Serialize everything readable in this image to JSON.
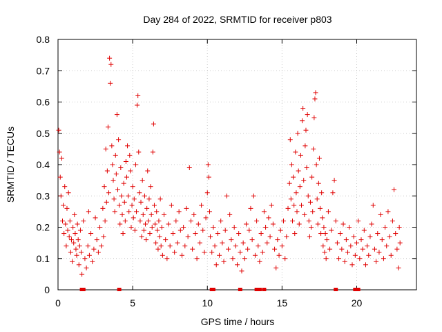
{
  "chart_data": {
    "type": "scatter",
    "title": "Day 284 of 2022, SRMTID for receiver p803",
    "xlabel": "GPS time / hours",
    "ylabel": "SRMTID / TECUs",
    "xlim": [
      0,
      24
    ],
    "ylim": [
      0,
      0.8
    ],
    "xticks": [
      0,
      5,
      10,
      15,
      20
    ],
    "yticks": [
      0,
      0.1,
      0.2,
      0.3,
      0.4,
      0.5,
      0.6,
      0.7,
      0.8
    ],
    "xtick_labels": [
      "0",
      "5",
      "10",
      "15",
      "20"
    ],
    "ytick_labels": [
      "0",
      "0.1",
      "0.2",
      "0.3",
      "0.4",
      "0.5",
      "0.6",
      "0.7",
      "0.8"
    ],
    "grid": true,
    "marker": "+",
    "color": "#e00000",
    "series": [
      {
        "name": "SRMTID",
        "points": [
          [
            0.05,
            0.51
          ],
          [
            0.1,
            0.44
          ],
          [
            0.15,
            0.36
          ],
          [
            0.2,
            0.3
          ],
          [
            0.25,
            0.42
          ],
          [
            0.3,
            0.22
          ],
          [
            0.35,
            0.27
          ],
          [
            0.4,
            0.18
          ],
          [
            0.45,
            0.33
          ],
          [
            0.5,
            0.21
          ],
          [
            0.55,
            0.14
          ],
          [
            0.6,
            0.26
          ],
          [
            0.65,
            0.19
          ],
          [
            0.7,
            0.31
          ],
          [
            0.75,
            0.17
          ],
          [
            0.8,
            0.22
          ],
          [
            0.85,
            0.12
          ],
          [
            0.9,
            0.16
          ],
          [
            0.95,
            0.09
          ],
          [
            1.0,
            0.2
          ],
          [
            1.05,
            0.15
          ],
          [
            1.1,
            0.24
          ],
          [
            1.15,
            0.18
          ],
          [
            1.2,
            0.13
          ],
          [
            1.25,
            0.11
          ],
          [
            1.3,
            0.21
          ],
          [
            1.35,
            0.16
          ],
          [
            1.4,
            0.08
          ],
          [
            1.45,
            0.14
          ],
          [
            1.5,
            0.19
          ],
          [
            1.55,
            0.12
          ],
          [
            1.6,
            0.05
          ],
          [
            1.7,
            0.22
          ],
          [
            1.8,
            0.1
          ],
          [
            1.9,
            0.07
          ],
          [
            2.0,
            0.14
          ],
          [
            2.05,
            0.25
          ],
          [
            2.1,
            0.11
          ],
          [
            2.2,
            0.18
          ],
          [
            2.3,
            0.09
          ],
          [
            2.4,
            0.13
          ],
          [
            2.5,
            0.23
          ],
          [
            2.6,
            0.16
          ],
          [
            2.7,
            0.12
          ],
          [
            2.8,
            0.2
          ],
          [
            2.9,
            0.14
          ],
          [
            3.0,
            0.26
          ],
          [
            3.05,
            0.17
          ],
          [
            3.1,
            0.33
          ],
          [
            3.15,
            0.22
          ],
          [
            3.2,
            0.45
          ],
          [
            3.25,
            0.28
          ],
          [
            3.3,
            0.38
          ],
          [
            3.35,
            0.52
          ],
          [
            3.4,
            0.31
          ],
          [
            3.45,
            0.74
          ],
          [
            3.5,
            0.66
          ],
          [
            3.55,
            0.72
          ],
          [
            3.6,
            0.46
          ],
          [
            3.65,
            0.4
          ],
          [
            3.7,
            0.35
          ],
          [
            3.75,
            0.29
          ],
          [
            3.8,
            0.25
          ],
          [
            3.85,
            0.43
          ],
          [
            3.9,
            0.37
          ],
          [
            3.95,
            0.56
          ],
          [
            4.0,
            0.32
          ],
          [
            4.05,
            0.48
          ],
          [
            4.1,
            0.27
          ],
          [
            4.15,
            0.21
          ],
          [
            4.2,
            0.39
          ],
          [
            4.25,
            0.3
          ],
          [
            4.3,
            0.24
          ],
          [
            4.35,
            0.18
          ],
          [
            4.4,
            0.34
          ],
          [
            4.45,
            0.28
          ],
          [
            4.5,
            0.22
          ],
          [
            4.55,
            0.41
          ],
          [
            4.6,
            0.36
          ],
          [
            4.65,
            0.46
          ],
          [
            4.7,
            0.3
          ],
          [
            4.75,
            0.25
          ],
          [
            4.8,
            0.43
          ],
          [
            4.85,
            0.38
          ],
          [
            4.9,
            0.2
          ],
          [
            4.95,
            0.27
          ],
          [
            5.0,
            0.33
          ],
          [
            5.05,
            0.23
          ],
          [
            5.1,
            0.29
          ],
          [
            5.15,
            0.19
          ],
          [
            5.2,
            0.4
          ],
          [
            5.25,
            0.25
          ],
          [
            5.3,
            0.59
          ],
          [
            5.35,
            0.62
          ],
          [
            5.4,
            0.44
          ],
          [
            5.45,
            0.31
          ],
          [
            5.5,
            0.22
          ],
          [
            5.55,
            0.28
          ],
          [
            5.6,
            0.17
          ],
          [
            5.65,
            0.35
          ],
          [
            5.7,
            0.24
          ],
          [
            5.75,
            0.19
          ],
          [
            5.8,
            0.3
          ],
          [
            5.85,
            0.21
          ],
          [
            5.9,
            0.16
          ],
          [
            5.95,
            0.26
          ],
          [
            6.0,
            0.38
          ],
          [
            6.05,
            0.22
          ],
          [
            6.1,
            0.29
          ],
          [
            6.15,
            0.18
          ],
          [
            6.2,
            0.33
          ],
          [
            6.25,
            0.24
          ],
          [
            6.3,
            0.2
          ],
          [
            6.35,
            0.44
          ],
          [
            6.4,
            0.53
          ],
          [
            6.45,
            0.27
          ],
          [
            6.5,
            0.21
          ],
          [
            6.55,
            0.15
          ],
          [
            6.6,
            0.25
          ],
          [
            6.65,
            0.19
          ],
          [
            6.7,
            0.13
          ],
          [
            6.75,
            0.22
          ],
          [
            6.8,
            0.17
          ],
          [
            6.85,
            0.29
          ],
          [
            6.9,
            0.14
          ],
          [
            6.95,
            0.2
          ],
          [
            7.0,
            0.11
          ],
          [
            7.1,
            0.24
          ],
          [
            7.2,
            0.16
          ],
          [
            7.3,
            0.1
          ],
          [
            7.4,
            0.21
          ],
          [
            7.5,
            0.14
          ],
          [
            7.6,
            0.27
          ],
          [
            7.7,
            0.18
          ],
          [
            7.8,
            0.12
          ],
          [
            7.9,
            0.22
          ],
          [
            8.0,
            0.15
          ],
          [
            8.1,
            0.25
          ],
          [
            8.2,
            0.19
          ],
          [
            8.3,
            0.11
          ],
          [
            8.4,
            0.2
          ],
          [
            8.5,
            0.14
          ],
          [
            8.6,
            0.26
          ],
          [
            8.7,
            0.17
          ],
          [
            8.8,
            0.39
          ],
          [
            8.9,
            0.22
          ],
          [
            9.0,
            0.13
          ],
          [
            9.1,
            0.24
          ],
          [
            9.2,
            0.18
          ],
          [
            9.3,
            0.1
          ],
          [
            9.4,
            0.21
          ],
          [
            9.5,
            0.15
          ],
          [
            9.6,
            0.27
          ],
          [
            9.7,
            0.19
          ],
          [
            9.8,
            0.12
          ],
          [
            9.9,
            0.23
          ],
          [
            10.0,
            0.31
          ],
          [
            10.05,
            0.4
          ],
          [
            10.1,
            0.36
          ],
          [
            10.15,
            0.25
          ],
          [
            10.2,
            0.17
          ],
          [
            10.3,
            0.12
          ],
          [
            10.4,
            0.2
          ],
          [
            10.5,
            0.14
          ],
          [
            10.6,
            0.08
          ],
          [
            10.7,
            0.18
          ],
          [
            10.8,
            0.11
          ],
          [
            10.9,
            0.22
          ],
          [
            11.0,
            0.15
          ],
          [
            11.1,
            0.09
          ],
          [
            11.2,
            0.19
          ],
          [
            11.3,
            0.3
          ],
          [
            11.4,
            0.13
          ],
          [
            11.5,
            0.24
          ],
          [
            11.6,
            0.16
          ],
          [
            11.7,
            0.1
          ],
          [
            11.8,
            0.2
          ],
          [
            11.9,
            0.14
          ],
          [
            12.0,
            0.08
          ],
          [
            12.1,
            0.18
          ],
          [
            12.2,
            0.12
          ],
          [
            12.3,
            0.06
          ],
          [
            12.4,
            0.15
          ],
          [
            12.5,
            0.1
          ],
          [
            12.6,
            0.21
          ],
          [
            12.7,
            0.13
          ],
          [
            12.8,
            0.19
          ],
          [
            12.9,
            0.26
          ],
          [
            13.0,
            0.16
          ],
          [
            13.1,
            0.3
          ],
          [
            13.2,
            0.11
          ],
          [
            13.3,
            0.22
          ],
          [
            13.4,
            0.14
          ],
          [
            13.5,
            0.09
          ],
          [
            13.6,
            0.18
          ],
          [
            13.7,
            0.12
          ],
          [
            13.8,
            0.25
          ],
          [
            13.9,
            0.2
          ],
          [
            14.0,
            0.15
          ],
          [
            14.1,
            0.23
          ],
          [
            14.2,
            0.17
          ],
          [
            14.3,
            0.27
          ],
          [
            14.4,
            0.21
          ],
          [
            14.5,
            0.13
          ],
          [
            14.6,
            0.07
          ],
          [
            14.7,
            0.16
          ],
          [
            14.8,
            0.11
          ],
          [
            14.9,
            0.19
          ],
          [
            15.0,
            0.14
          ],
          [
            15.1,
            0.22
          ],
          [
            15.2,
            0.1
          ],
          [
            15.3,
            0.17
          ],
          [
            15.4,
            0.26
          ],
          [
            15.5,
            0.34
          ],
          [
            15.55,
            0.48
          ],
          [
            15.6,
            0.29
          ],
          [
            15.65,
            0.4
          ],
          [
            15.7,
            0.22
          ],
          [
            15.75,
            0.36
          ],
          [
            15.8,
            0.27
          ],
          [
            15.85,
            0.18
          ],
          [
            15.9,
            0.44
          ],
          [
            15.95,
            0.31
          ],
          [
            16.0,
            0.25
          ],
          [
            16.05,
            0.5
          ],
          [
            16.1,
            0.38
          ],
          [
            16.15,
            0.21
          ],
          [
            16.2,
            0.33
          ],
          [
            16.25,
            0.43
          ],
          [
            16.3,
            0.27
          ],
          [
            16.35,
            0.54
          ],
          [
            16.4,
            0.58
          ],
          [
            16.45,
            0.35
          ],
          [
            16.5,
            0.24
          ],
          [
            16.55,
            0.46
          ],
          [
            16.6,
            0.51
          ],
          [
            16.65,
            0.39
          ],
          [
            16.7,
            0.56
          ],
          [
            16.75,
            0.3
          ],
          [
            16.8,
            0.22
          ],
          [
            16.85,
            0.17
          ],
          [
            16.9,
            0.28
          ],
          [
            16.95,
            0.2
          ],
          [
            17.0,
            0.36
          ],
          [
            17.05,
            0.25
          ],
          [
            17.1,
            0.45
          ],
          [
            17.15,
            0.55
          ],
          [
            17.2,
            0.61
          ],
          [
            17.25,
            0.63
          ],
          [
            17.3,
            0.4
          ],
          [
            17.35,
            0.29
          ],
          [
            17.4,
            0.21
          ],
          [
            17.45,
            0.34
          ],
          [
            17.5,
            0.42
          ],
          [
            17.55,
            0.26
          ],
          [
            17.6,
            0.18
          ],
          [
            17.65,
            0.31
          ],
          [
            17.7,
            0.23
          ],
          [
            17.75,
            0.14
          ],
          [
            17.8,
            0.2
          ],
          [
            17.85,
            0.12
          ],
          [
            17.9,
            0.18
          ],
          [
            17.95,
            0.1
          ],
          [
            18.0,
            0.16
          ],
          [
            18.1,
            0.25
          ],
          [
            18.2,
            0.13
          ],
          [
            18.3,
            0.19
          ],
          [
            18.4,
            0.31
          ],
          [
            18.5,
            0.35
          ],
          [
            18.6,
            0.22
          ],
          [
            18.7,
            0.15
          ],
          [
            18.8,
            0.1
          ],
          [
            18.9,
            0.18
          ],
          [
            19.0,
            0.13
          ],
          [
            19.1,
            0.21
          ],
          [
            19.2,
            0.09
          ],
          [
            19.3,
            0.16
          ],
          [
            19.4,
            0.12
          ],
          [
            19.5,
            0.2
          ],
          [
            19.6,
            0.14
          ],
          [
            19.7,
            0.08
          ],
          [
            19.8,
            0.17
          ],
          [
            19.9,
            0.11
          ],
          [
            20.0,
            0.15
          ],
          [
            20.1,
            0.22
          ],
          [
            20.2,
            0.1
          ],
          [
            20.3,
            0.16
          ],
          [
            20.4,
            0.13
          ],
          [
            20.5,
            0.19
          ],
          [
            20.6,
            0.08
          ],
          [
            20.7,
            0.14
          ],
          [
            20.8,
            0.11
          ],
          [
            20.9,
            0.17
          ],
          [
            21.0,
            0.21
          ],
          [
            21.1,
            0.27
          ],
          [
            21.2,
            0.13
          ],
          [
            21.3,
            0.09
          ],
          [
            21.4,
            0.18
          ],
          [
            21.5,
            0.12
          ],
          [
            21.6,
            0.24
          ],
          [
            21.7,
            0.16
          ],
          [
            21.8,
            0.1
          ],
          [
            21.9,
            0.2
          ],
          [
            22.0,
            0.14
          ],
          [
            22.1,
            0.25
          ],
          [
            22.2,
            0.17
          ],
          [
            22.3,
            0.11
          ],
          [
            22.4,
            0.22
          ],
          [
            22.5,
            0.32
          ],
          [
            22.6,
            0.18
          ],
          [
            22.7,
            0.13
          ],
          [
            22.8,
            0.07
          ],
          [
            22.85,
            0.2
          ],
          [
            22.9,
            0.15
          ]
        ]
      }
    ],
    "zero_value_points": [
      1.6,
      1.7,
      4.1,
      10.3,
      10.4,
      12.2,
      13.3,
      13.5,
      13.8,
      18.6,
      19.9,
      20.0,
      20.1
    ]
  }
}
